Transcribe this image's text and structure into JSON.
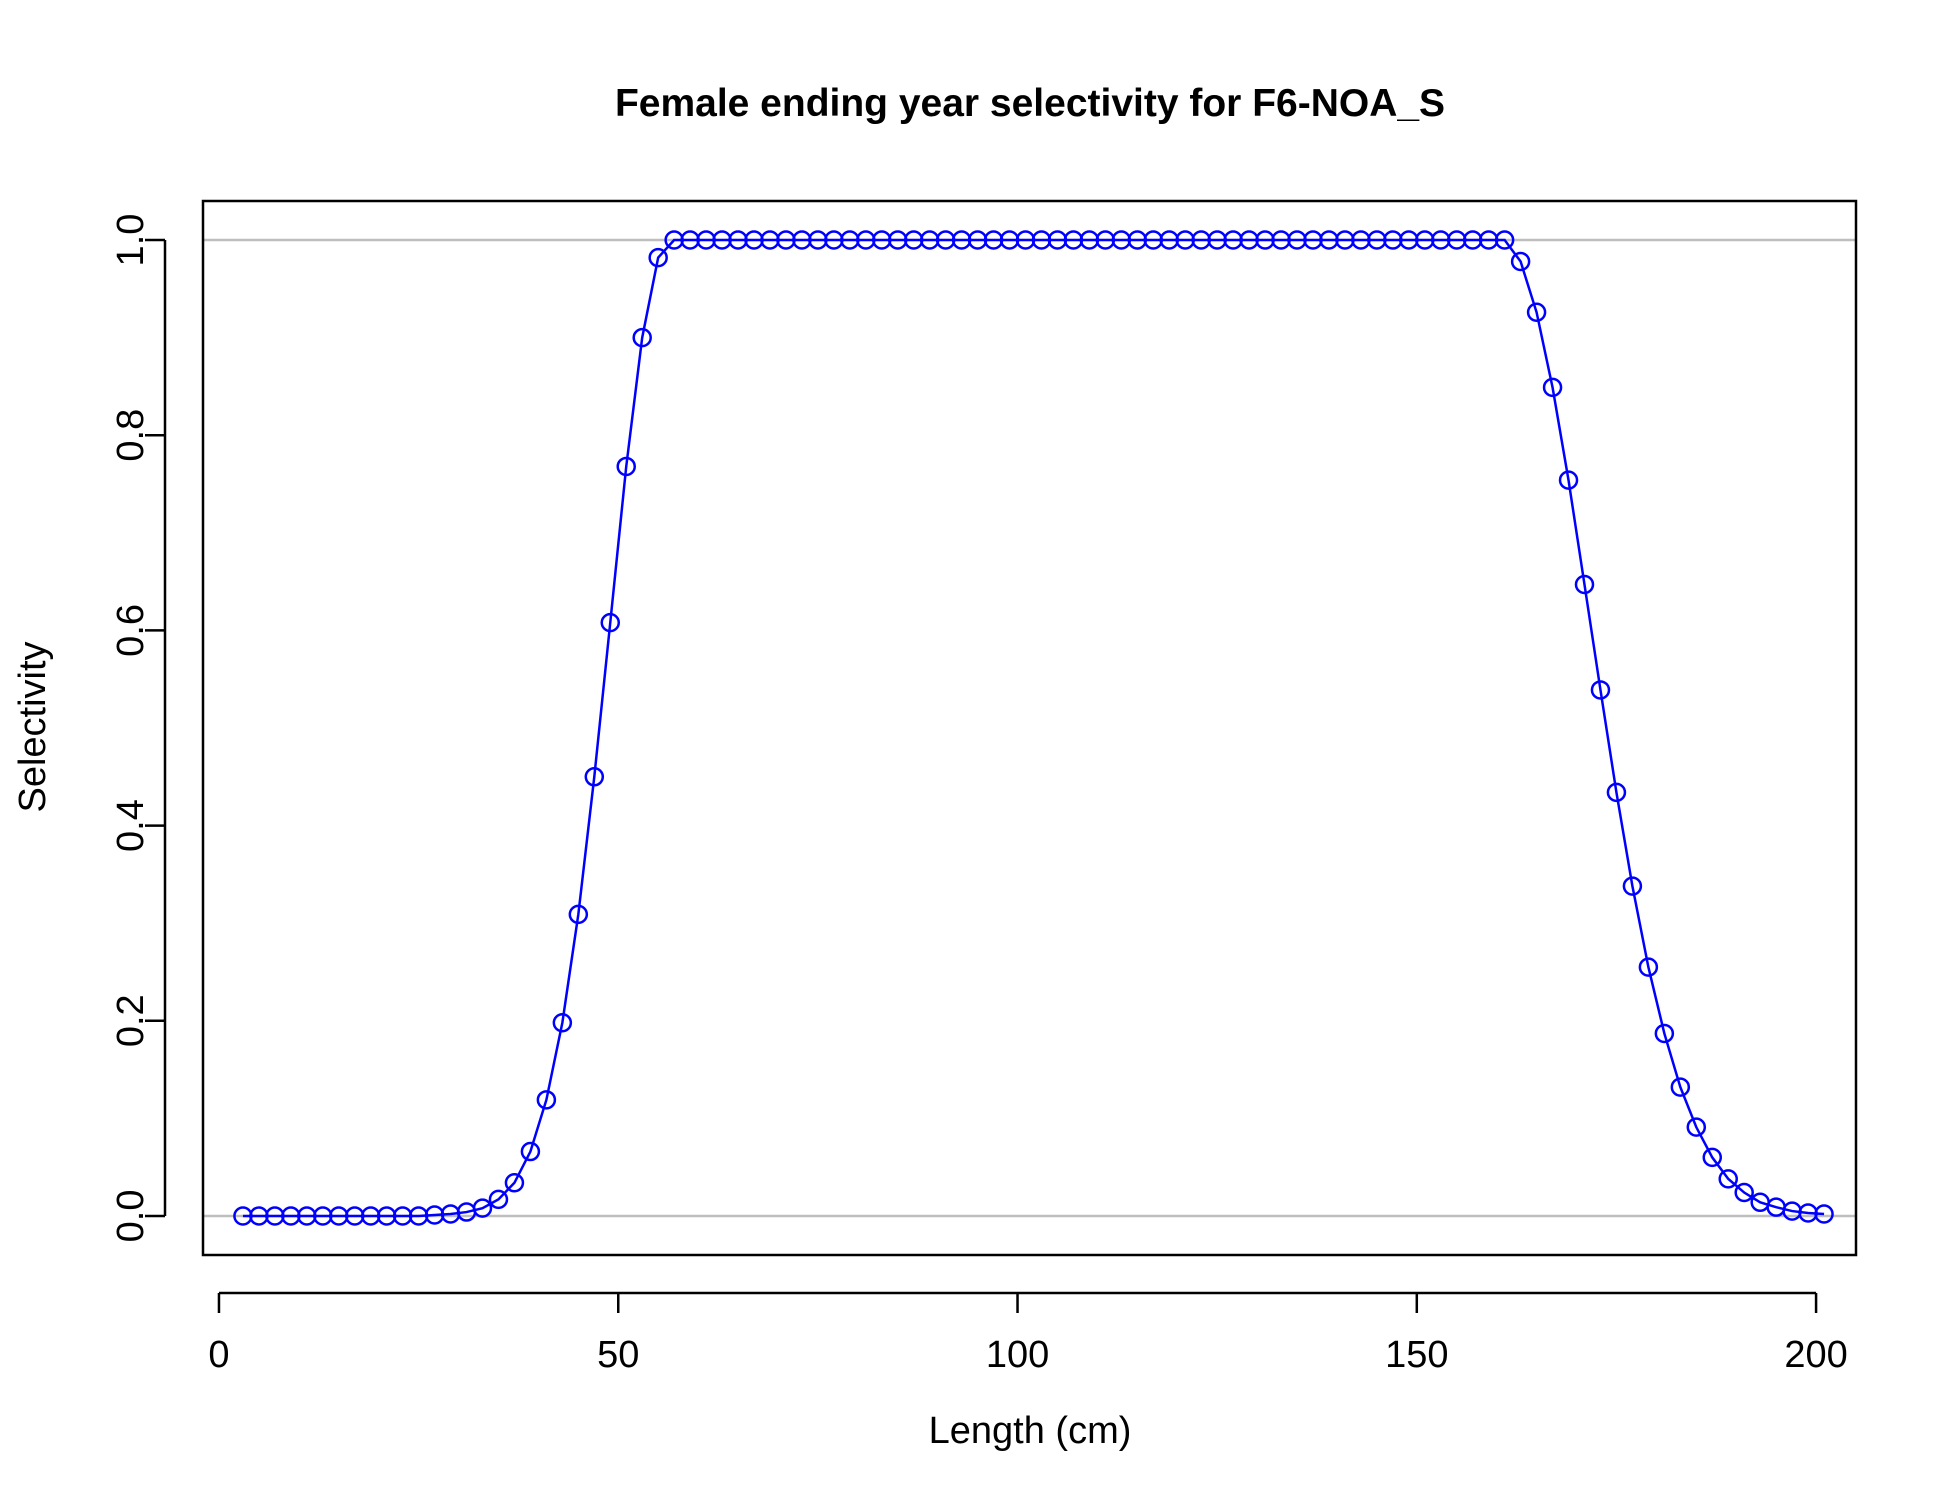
{
  "chart_data": {
    "type": "line",
    "title": "Female ending year selectivity for F6-NOA_S",
    "xlabel": "Length (cm)",
    "ylabel": "Selectivity",
    "xlim": [
      -2,
      205
    ],
    "ylim": [
      -0.04,
      1.04
    ],
    "x_ticks": [
      0,
      50,
      100,
      150,
      200
    ],
    "y_ticks": [
      0.0,
      0.2,
      0.4,
      0.6,
      0.8,
      1.0
    ],
    "x_tick_labels": [
      "0",
      "50",
      "100",
      "150",
      "200"
    ],
    "y_tick_labels": [
      "0.0",
      "0.2",
      "0.4",
      "0.6",
      "0.8",
      "1.0"
    ],
    "reference_lines": [
      0,
      1
    ],
    "grid": false,
    "legend": "none",
    "colors": {
      "series": "#0000ff",
      "reference": "#bebebe",
      "frame": "#000000"
    },
    "series": [
      {
        "marker": "open-circle",
        "x": [
          3,
          5,
          7,
          9,
          11,
          13,
          15,
          17,
          19,
          21,
          23,
          25,
          27,
          29,
          31,
          33,
          35,
          37,
          39,
          41,
          43,
          45,
          47,
          49,
          51,
          53,
          55,
          57,
          59,
          61,
          63,
          65,
          67,
          69,
          71,
          73,
          75,
          77,
          79,
          81,
          83,
          85,
          87,
          89,
          91,
          93,
          95,
          97,
          99,
          101,
          103,
          105,
          107,
          109,
          111,
          113,
          115,
          117,
          119,
          121,
          123,
          125,
          127,
          129,
          131,
          133,
          135,
          137,
          139,
          141,
          143,
          145,
          147,
          149,
          151,
          153,
          155,
          157,
          159,
          161,
          163,
          165,
          167,
          169,
          171,
          173,
          175,
          177,
          179,
          181,
          183,
          185,
          187,
          189,
          191,
          193,
          195,
          197,
          199,
          201
        ],
        "y": [
          0.0,
          0.0,
          0.0,
          0.0,
          0.0,
          0.0,
          0.0,
          0.0,
          0.0,
          0.0,
          0.0,
          0.0,
          0.001,
          0.002,
          0.004,
          0.008,
          0.017,
          0.034,
          0.066,
          0.119,
          0.198,
          0.309,
          0.45,
          0.608,
          0.768,
          0.9,
          0.982,
          1.0,
          1.0,
          1.0,
          1.0,
          1.0,
          1.0,
          1.0,
          1.0,
          1.0,
          1.0,
          1.0,
          1.0,
          1.0,
          1.0,
          1.0,
          1.0,
          1.0,
          1.0,
          1.0,
          1.0,
          1.0,
          1.0,
          1.0,
          1.0,
          1.0,
          1.0,
          1.0,
          1.0,
          1.0,
          1.0,
          1.0,
          1.0,
          1.0,
          1.0,
          1.0,
          1.0,
          1.0,
          1.0,
          1.0,
          1.0,
          1.0,
          1.0,
          1.0,
          1.0,
          1.0,
          1.0,
          1.0,
          1.0,
          1.0,
          1.0,
          1.0,
          1.0,
          1.0,
          0.978,
          0.926,
          0.849,
          0.754,
          0.647,
          0.539,
          0.434,
          0.338,
          0.255,
          0.187,
          0.132,
          0.091,
          0.06,
          0.038,
          0.024,
          0.014,
          0.009,
          0.005,
          0.003,
          0.002
        ]
      }
    ]
  }
}
